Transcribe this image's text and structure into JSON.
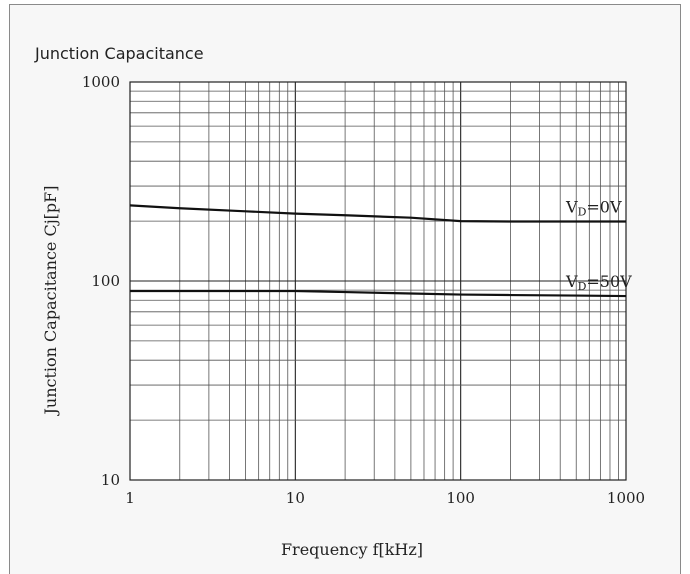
{
  "chart_data": {
    "type": "line",
    "title": "Junction Capacitance",
    "xlabel": "Frequency f[kHz]",
    "ylabel": "Junction Capacitance Cj[pF]",
    "xscale": "log",
    "yscale": "log",
    "xlim": [
      1,
      1000
    ],
    "ylim": [
      10,
      1000
    ],
    "grid": true,
    "x_tick_labels": [
      "1",
      "10",
      "100",
      "1000"
    ],
    "y_tick_labels": [
      "10",
      "100",
      "1000"
    ],
    "series": [
      {
        "name": "VD=0V",
        "label_main": "V",
        "label_sub": "D",
        "label_rest": "=0V",
        "points": [
          [
            1,
            240
          ],
          [
            2,
            232
          ],
          [
            5,
            224
          ],
          [
            10,
            218
          ],
          [
            20,
            214
          ],
          [
            50,
            208
          ],
          [
            100,
            200
          ],
          [
            200,
            199
          ],
          [
            500,
            199
          ],
          [
            1000,
            199
          ]
        ]
      },
      {
        "name": "VD=50V",
        "label_main": "V",
        "label_sub": "D",
        "label_rest": "=50V",
        "points": [
          [
            1,
            89
          ],
          [
            10,
            89
          ],
          [
            20,
            88
          ],
          [
            50,
            86.5
          ],
          [
            100,
            85.5
          ],
          [
            200,
            85
          ],
          [
            500,
            84.5
          ],
          [
            1000,
            84
          ]
        ]
      }
    ]
  }
}
